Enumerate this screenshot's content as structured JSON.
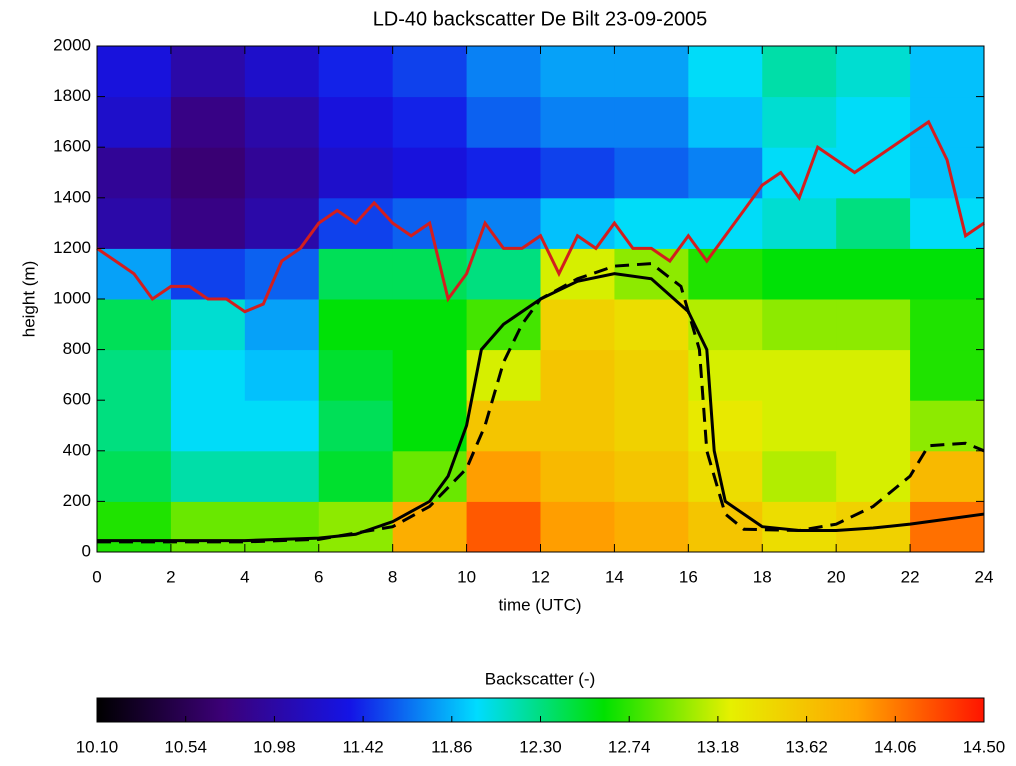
{
  "chart_data": {
    "type": "heatmap",
    "title": "LD-40 backscatter De Bilt 23-09-2005",
    "x_label": "time (UTC)",
    "y_label": "height (m)",
    "xlim": [
      0,
      24
    ],
    "xticks": [
      0,
      2,
      4,
      6,
      8,
      10,
      12,
      14,
      16,
      18,
      20,
      22,
      24
    ],
    "ylim": [
      0,
      2000
    ],
    "yticks": [
      0,
      200,
      400,
      600,
      800,
      1000,
      1200,
      1400,
      1600,
      1800,
      2000
    ],
    "x": [
      1,
      3,
      5,
      7,
      9,
      11,
      13,
      15,
      17,
      19,
      21,
      23
    ],
    "y": [
      100,
      300,
      500,
      700,
      900,
      1100,
      1300,
      1500,
      1700,
      1900
    ],
    "z": [
      [
        12.7,
        12.9,
        12.9,
        13.0,
        13.8,
        14.2,
        13.9,
        13.8,
        13.6,
        13.4,
        13.5,
        14.1
      ],
      [
        12.4,
        12.2,
        12.2,
        12.5,
        12.9,
        13.9,
        13.7,
        13.6,
        13.4,
        13.1,
        13.2,
        13.7
      ],
      [
        12.3,
        12.0,
        12.0,
        12.4,
        12.6,
        13.6,
        13.6,
        13.5,
        13.3,
        13.2,
        13.2,
        13.0
      ],
      [
        12.3,
        12.0,
        11.9,
        12.5,
        12.6,
        13.2,
        13.6,
        13.5,
        13.2,
        13.2,
        13.2,
        12.7
      ],
      [
        12.4,
        12.1,
        11.8,
        12.6,
        12.6,
        12.8,
        13.5,
        13.4,
        13.1,
        13.0,
        13.0,
        12.7
      ],
      [
        11.8,
        11.5,
        11.6,
        12.4,
        12.4,
        12.3,
        13.2,
        13.0,
        12.7,
        12.6,
        12.6,
        12.6
      ],
      [
        11.0,
        10.8,
        11.0,
        11.5,
        11.6,
        11.7,
        11.9,
        12.0,
        12.0,
        12.1,
        12.3,
        12.0
      ],
      [
        10.9,
        10.7,
        10.9,
        11.2,
        11.3,
        11.4,
        11.5,
        11.6,
        11.7,
        12.0,
        12.0,
        11.9
      ],
      [
        11.2,
        10.8,
        11.0,
        11.3,
        11.4,
        11.6,
        11.7,
        11.7,
        11.9,
        12.1,
        12.0,
        11.9
      ],
      [
        11.3,
        11.0,
        11.2,
        11.4,
        11.5,
        11.7,
        11.8,
        11.8,
        12.0,
        12.2,
        12.1,
        11.9
      ]
    ],
    "colormap": [
      "#000000",
      "#3c0078",
      "#1414e6",
      "#00dcff",
      "#00e100",
      "#e6f000",
      "#ffa500",
      "#ff1400"
    ],
    "colorbar_title": "Backscatter (-)",
    "zlim": [
      10.1,
      14.5
    ],
    "zticks": [
      {
        "value": 10.1,
        "label": "10.10"
      },
      10.54,
      10.98,
      11.42,
      11.86,
      {
        "value": 12.3,
        "label": "12.30"
      },
      12.74,
      13.18,
      13.62,
      14.06,
      {
        "value": 14.5,
        "label": "14.50"
      }
    ],
    "lines": [
      {
        "color": "#000000",
        "dash": "solid",
        "x": [
          0,
          4,
          6,
          7,
          8,
          9,
          9.5,
          10,
          10.4,
          11,
          12,
          13,
          14,
          15,
          16,
          16.5,
          16.7,
          17,
          18,
          19,
          20,
          21,
          22,
          23,
          24
        ],
        "values": [
          45,
          45,
          55,
          70,
          120,
          200,
          300,
          500,
          800,
          900,
          1000,
          1070,
          1100,
          1080,
          950,
          800,
          400,
          200,
          100,
          85,
          85,
          95,
          110,
          130,
          150
        ]
      },
      {
        "color": "#000000",
        "dash": "dashed",
        "x": [
          0,
          4,
          6,
          8,
          9,
          10,
          10.5,
          11,
          11.5,
          12,
          13,
          14,
          15,
          15.8,
          16.3,
          16.5,
          17,
          17.5,
          19,
          20,
          21,
          22,
          22.5,
          23.5,
          24
        ],
        "values": [
          40,
          40,
          50,
          100,
          180,
          330,
          500,
          750,
          900,
          1000,
          1080,
          1130,
          1140,
          1050,
          800,
          400,
          150,
          90,
          85,
          110,
          180,
          300,
          420,
          430,
          400
        ]
      },
      {
        "color": "#d21e1e",
        "dash": "solid",
        "x": [
          0,
          0.5,
          1,
          1.5,
          2,
          2.5,
          3,
          3.5,
          4,
          4.5,
          5,
          5.5,
          6,
          6.5,
          7,
          7.5,
          8,
          8.5,
          9,
          9.5,
          10,
          10.5,
          11,
          11.5,
          12,
          12.5,
          13,
          13.5,
          14,
          14.5,
          15,
          15.5,
          16,
          16.5,
          17,
          17.5,
          18,
          18.5,
          19,
          19.5,
          20,
          20.5,
          21,
          21.5,
          22,
          22.5,
          23,
          23.5,
          24
        ],
        "values": [
          1200,
          1150,
          1100,
          1000,
          1050,
          1050,
          1000,
          1000,
          950,
          980,
          1150,
          1200,
          1300,
          1350,
          1300,
          1380,
          1300,
          1250,
          1300,
          1000,
          1100,
          1300,
          1200,
          1200,
          1250,
          1100,
          1250,
          1200,
          1300,
          1200,
          1200,
          1150,
          1250,
          1150,
          1250,
          1350,
          1450,
          1500,
          1400,
          1600,
          1550,
          1500,
          1550,
          1600,
          1650,
          1700,
          1550,
          1250,
          1300
        ]
      }
    ]
  }
}
